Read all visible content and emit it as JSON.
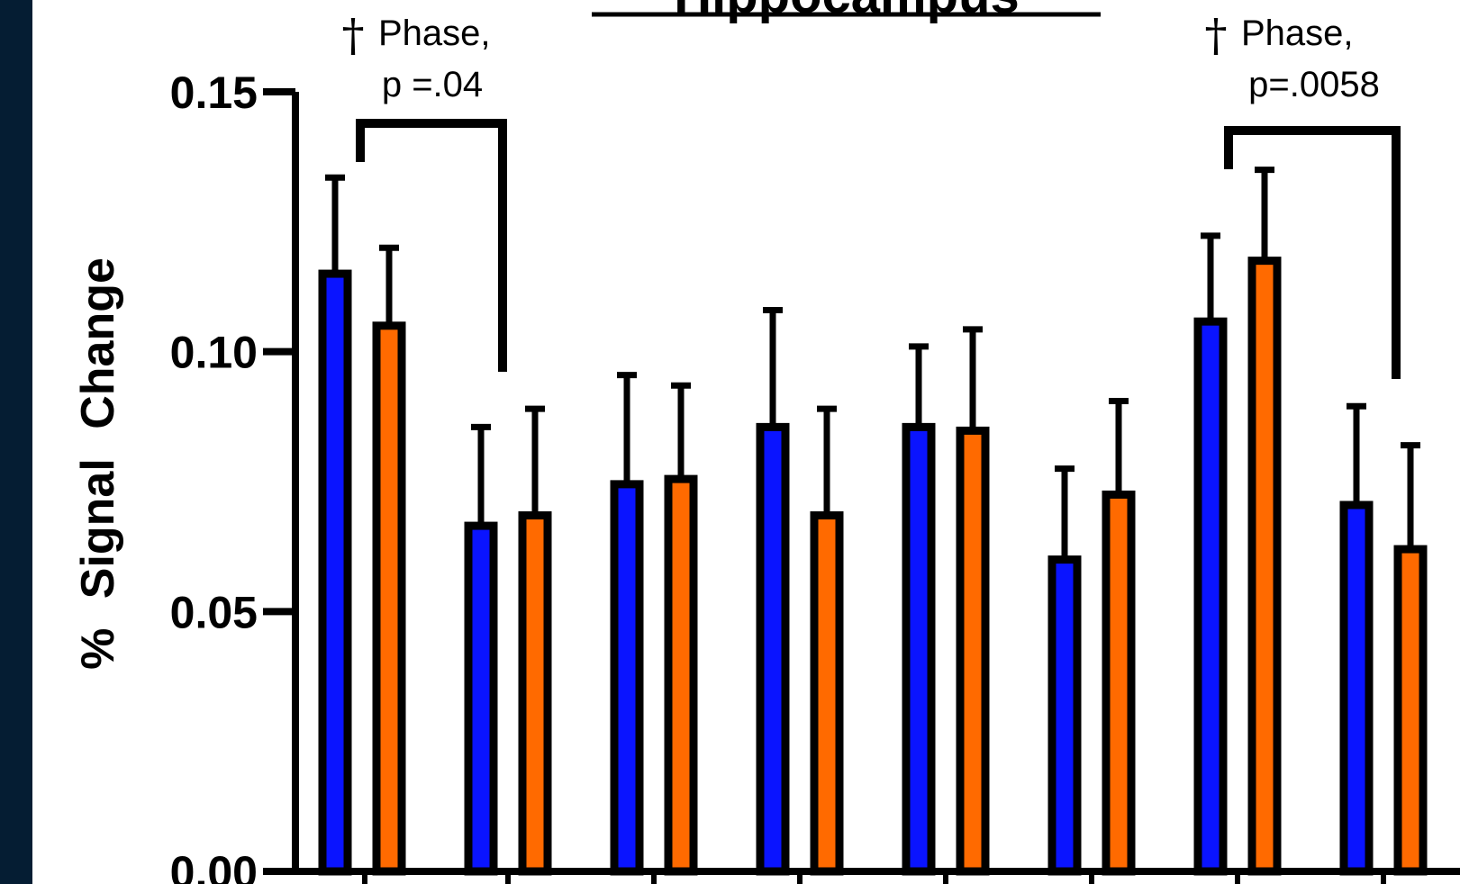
{
  "colors": {
    "side_band": "#051d33",
    "series_a": "#0a14ff",
    "series_b": "#ff6a00",
    "outline": "#000000"
  },
  "chart_data": {
    "type": "bar",
    "title": "Hippocampus",
    "xlabel": "",
    "ylabel": "% Signal Change",
    "ylim": [
      0,
      0.15
    ],
    "yticks": [
      "0.15",
      "0.10",
      "0.05",
      "0.00"
    ],
    "grid": false,
    "legend": "none",
    "groups": [
      {
        "values": [
          0.115,
          0.105
        ],
        "errors": [
          0.0185,
          0.015
        ]
      },
      {
        "values": [
          0.0665,
          0.0685
        ],
        "errors": [
          0.019,
          0.0205
        ]
      },
      {
        "values": [
          0.0745,
          0.0755
        ],
        "errors": [
          0.021,
          0.018
        ]
      },
      {
        "values": [
          0.0855,
          0.0685
        ],
        "errors": [
          0.0225,
          0.0205
        ]
      },
      {
        "values": [
          0.0855,
          0.0848
        ],
        "errors": [
          0.0155,
          0.0195
        ]
      },
      {
        "values": [
          0.06,
          0.0725
        ],
        "errors": [
          0.0175,
          0.018
        ]
      },
      {
        "values": [
          0.1058,
          0.1175
        ],
        "errors": [
          0.0165,
          0.0175
        ]
      },
      {
        "values": [
          0.0705,
          0.062
        ],
        "errors": [
          0.019,
          0.02
        ]
      }
    ],
    "annotations": [
      {
        "dagger": "†",
        "line1": "Phase,",
        "line2": "p =.04"
      },
      {
        "dagger": "†",
        "line1": "Phase,",
        "line2": "p=.0058"
      }
    ]
  }
}
